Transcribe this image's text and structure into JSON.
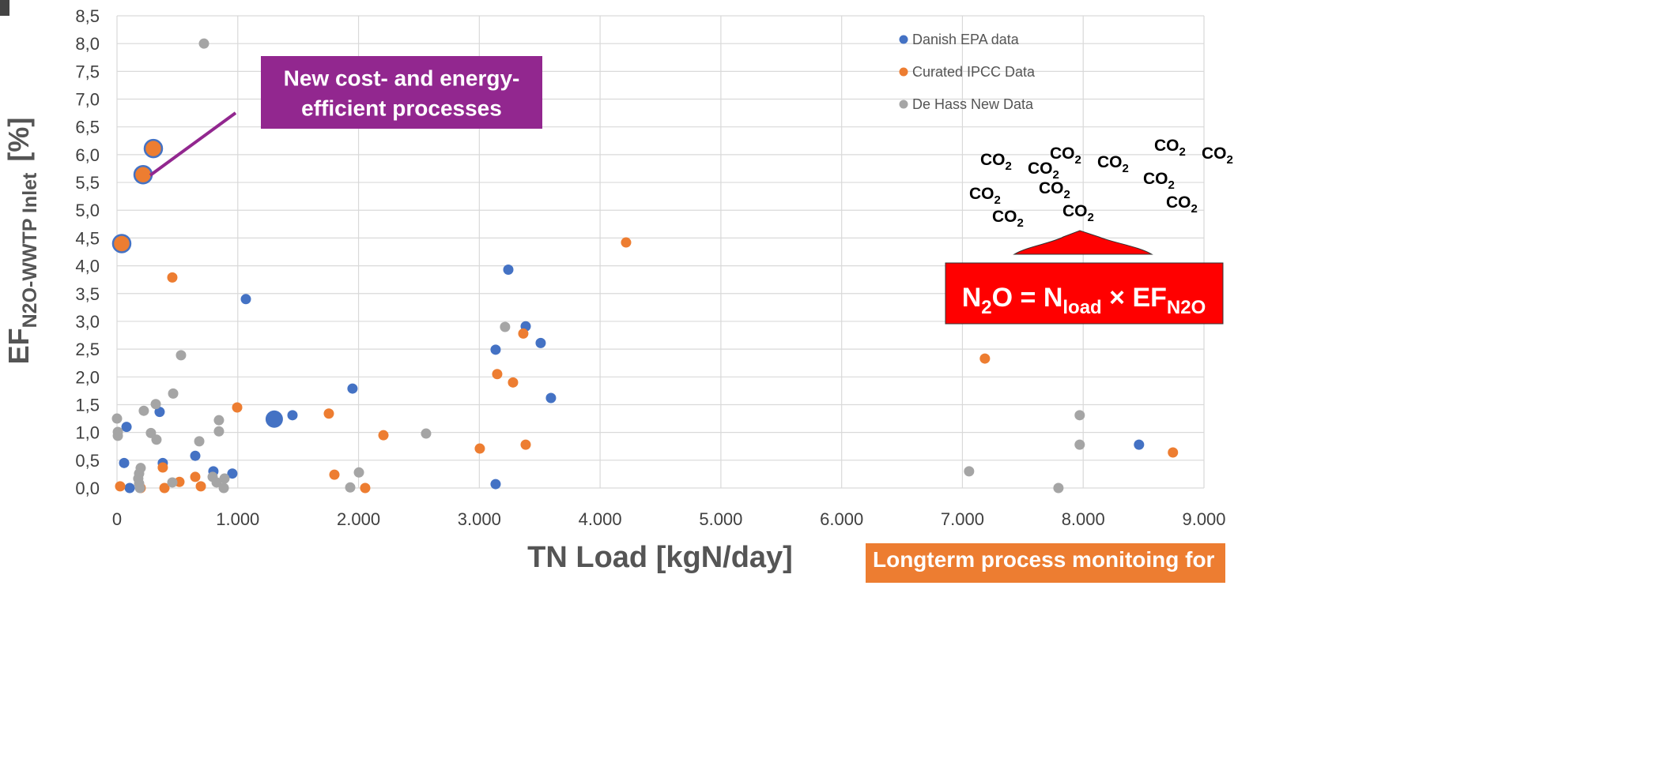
{
  "chart_data": {
    "type": "scatter",
    "xlabel": "TN Load [kgN/day]",
    "ylabel": [
      "EF",
      "N2O-WWTP Inlet",
      "[%]"
    ],
    "xlim": [
      0,
      9000
    ],
    "ylim": [
      0,
      8.5
    ],
    "xticks": [
      0,
      {
        "value": 1000,
        "label": "1.000"
      },
      {
        "value": 2000,
        "label": "2.000"
      },
      {
        "value": 3000,
        "label": "3.000"
      },
      {
        "value": 4000,
        "label": "4.000"
      },
      {
        "value": 5000,
        "label": "5.000"
      },
      {
        "value": 6000,
        "label": "6.000"
      },
      {
        "value": 7000,
        "label": "7.000"
      },
      {
        "value": 8000,
        "label": "8.000"
      },
      {
        "value": 9000,
        "label": "9.000"
      }
    ],
    "yticks": [
      {
        "value": 0,
        "label": "0,0"
      },
      {
        "value": 0.5,
        "label": "0,5"
      },
      {
        "value": 1,
        "label": "1,0"
      },
      {
        "value": 1.5,
        "label": "1,5"
      },
      {
        "value": 2,
        "label": "2,0"
      },
      {
        "value": 2.5,
        "label": "2,5"
      },
      {
        "value": 3,
        "label": "3,0"
      },
      {
        "value": 3.5,
        "label": "3,5"
      },
      {
        "value": 4,
        "label": "4,0"
      },
      {
        "value": 4.5,
        "label": "4,5"
      },
      {
        "value": 5,
        "label": "5,0"
      },
      {
        "value": 5.5,
        "label": "5,5"
      },
      {
        "value": 6,
        "label": "6,0"
      },
      {
        "value": 6.5,
        "label": "6,5"
      },
      {
        "value": 7,
        "label": "7,0"
      },
      {
        "value": 7.5,
        "label": "7,5"
      },
      {
        "value": 8,
        "label": "8,0"
      },
      {
        "value": 8.5,
        "label": "8,5"
      }
    ],
    "grid": true,
    "legend": "upper right",
    "series": [
      {
        "name": "Danish EPA data",
        "color": "#4472c4",
        "x": [
          59,
          79,
          105,
          353,
          379,
          648,
          798,
          955,
          1067,
          1302,
          1453,
          1950,
          3135,
          3135,
          3240,
          3384,
          3508,
          3593,
          8462
        ],
        "values": [
          0.45,
          1.1,
          0,
          1.37,
          0.45,
          0.58,
          0.3,
          0.26,
          3.4,
          1.24,
          1.31,
          1.79,
          2.49,
          0.07,
          3.93,
          2.91,
          2.61,
          1.62,
          0.78
        ],
        "sizes": [
          1,
          1,
          1,
          1,
          1,
          1,
          1,
          1,
          1,
          2,
          1,
          1,
          1,
          1,
          1,
          1,
          1,
          1,
          1
        ]
      },
      {
        "name": "Curated IPCC Data",
        "color": "#ed7d31",
        "highlight_edgecolor": "#4472c4",
        "x": [
          26,
          196,
          379,
          393,
          458,
          517,
          648,
          694,
          995,
          1754,
          1800,
          2055,
          2206,
          3004,
          3148,
          3279,
          3364,
          3384,
          4215,
          7186,
          8743,
          39,
          216,
          301
        ],
        "values": [
          0.03,
          0,
          0.37,
          0,
          3.79,
          0.11,
          0.2,
          0.03,
          1.45,
          1.34,
          0.24,
          0,
          0.95,
          0.71,
          2.05,
          1.9,
          2.78,
          0.78,
          4.42,
          2.33,
          0.64,
          4.4,
          5.64,
          6.11
        ],
        "sizes": [
          1,
          1,
          1,
          1,
          1,
          1,
          1,
          1,
          1,
          1,
          1,
          1,
          1,
          1,
          1,
          1,
          1,
          1,
          1,
          1,
          1,
          2,
          2,
          2
        ]
      },
      {
        "name": "De Hass New Data",
        "color": "#a5a5a5",
        "x": [
          0,
          7,
          7,
          196,
          183,
          176,
          183,
          222,
          281,
          321,
          327,
          458,
          465,
          530,
          681,
          720,
          792,
          825,
          844,
          844,
          890,
          884,
          1931,
          2003,
          2559,
          3213,
          7055,
          7795,
          7971,
          7971,
          190
        ],
        "values": [
          1.25,
          1.01,
          0.94,
          0.36,
          0.26,
          0.17,
          0.08,
          1.39,
          0.99,
          1.51,
          0.87,
          0.1,
          1.7,
          2.39,
          0.84,
          8.0,
          0.2,
          0.1,
          1.22,
          1.02,
          0.17,
          0,
          0.01,
          0.28,
          0.98,
          2.9,
          0.3,
          0,
          1.31,
          0.78,
          0
        ]
      }
    ],
    "annotations": {
      "processes": [
        "New cost- and energy-",
        "efficient processes"
      ],
      "co2": [
        "CO",
        "2"
      ],
      "formula": [
        "N",
        "2",
        "O = N",
        "load",
        " × EF",
        "N2O"
      ],
      "monitoring": "Longterm process monitoing for"
    }
  }
}
